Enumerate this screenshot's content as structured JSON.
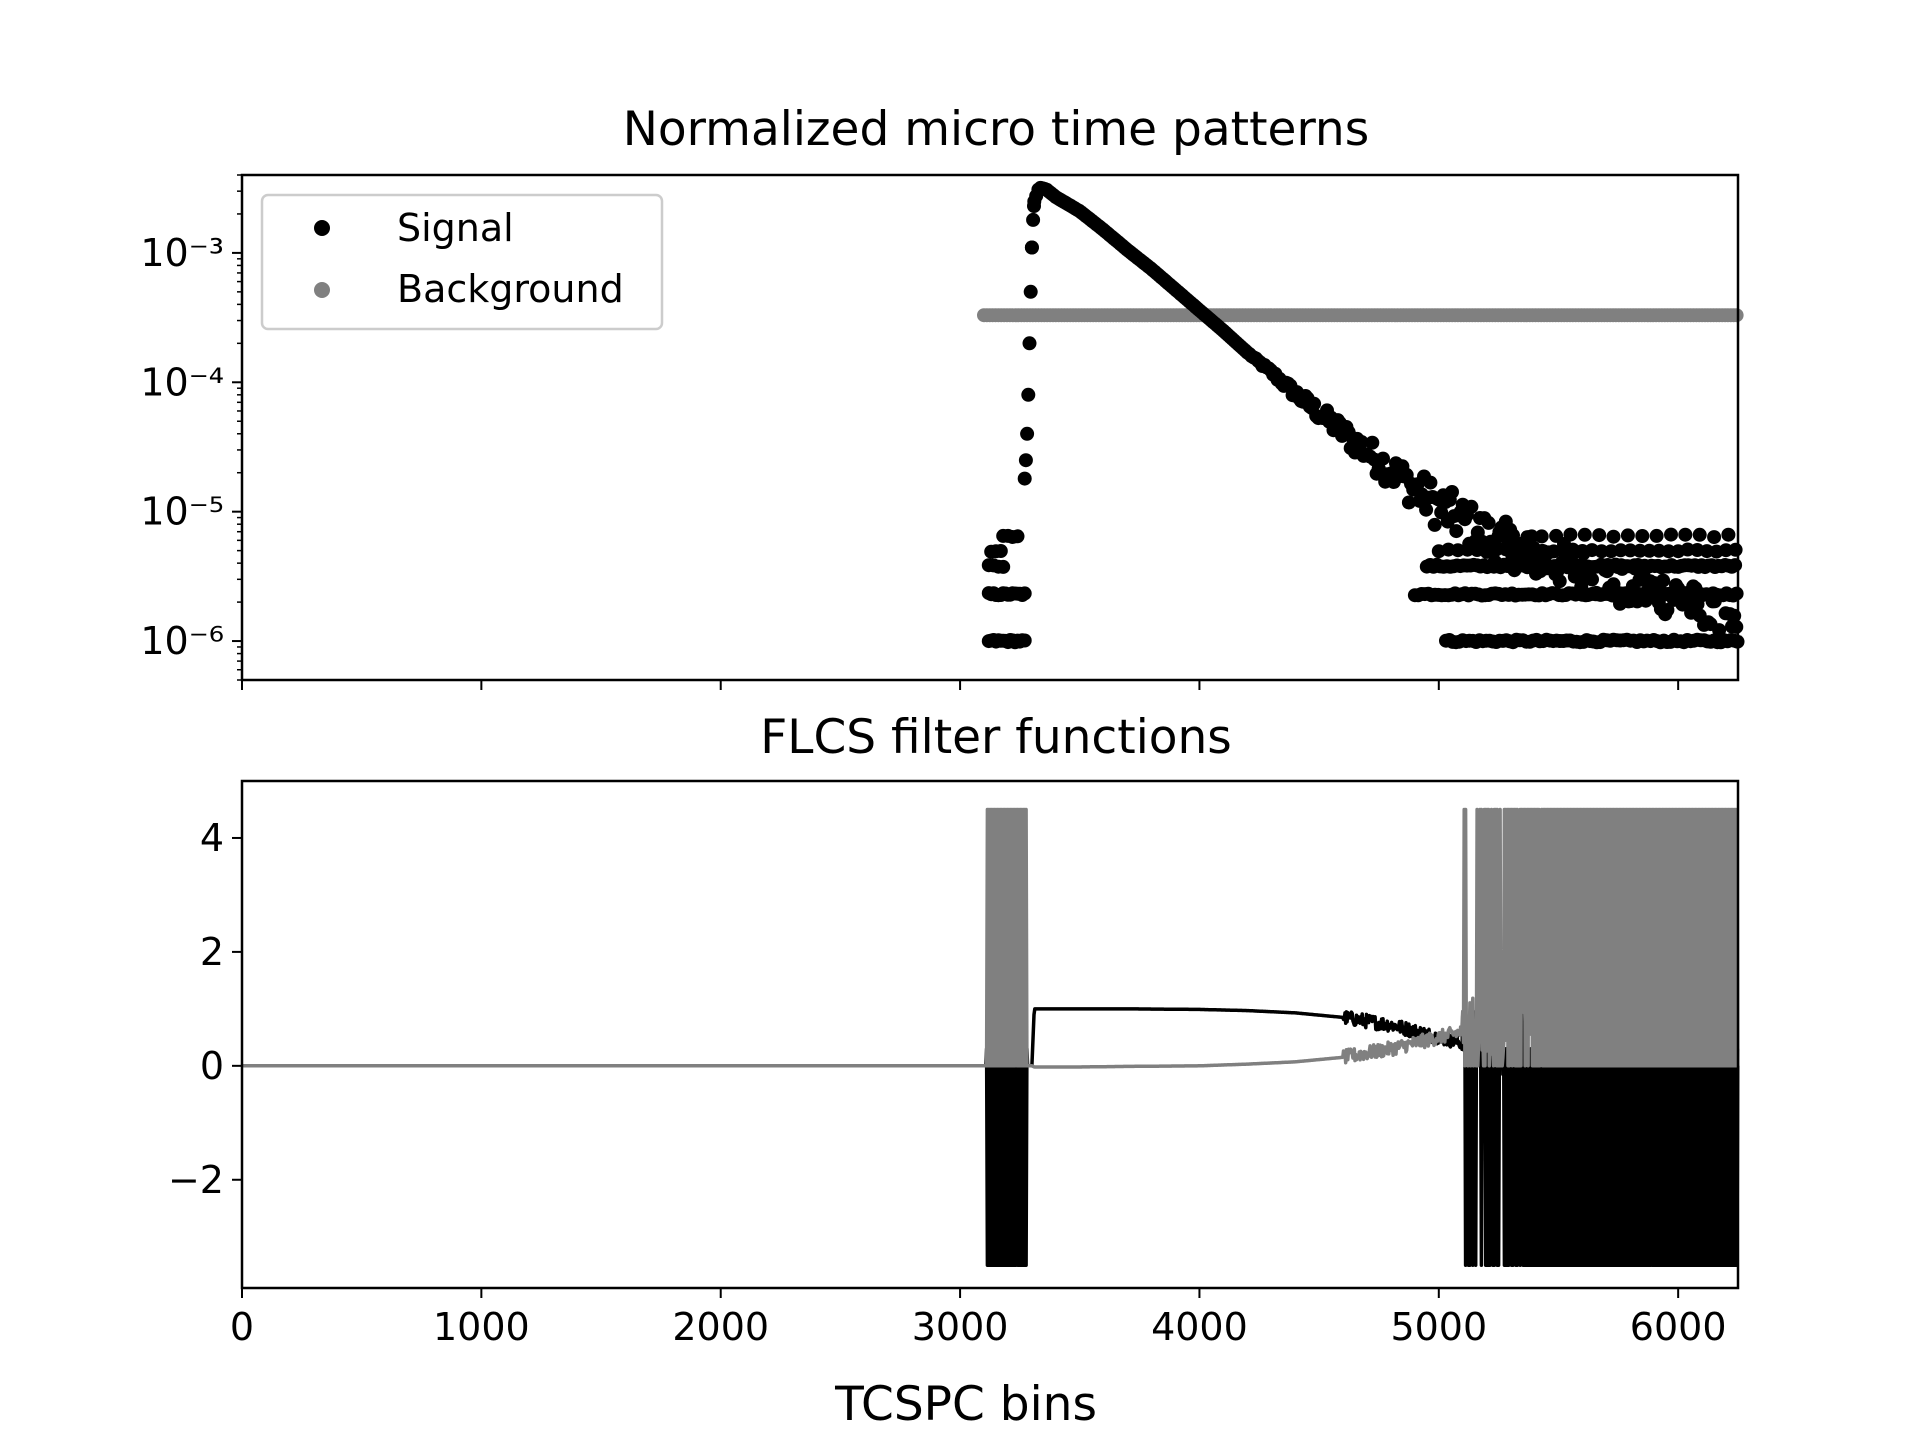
{
  "colors": {
    "signal": "#000000",
    "background": "#808080"
  },
  "chart_data": [
    {
      "type": "scatter",
      "title": "Normalized micro time patterns",
      "xlabel": "",
      "ylabel": "",
      "yscale": "log",
      "xlim": [
        0,
        6250
      ],
      "ylim": [
        5e-07,
        0.004
      ],
      "y_tick_labels": [
        "10⁻³",
        "10⁻⁴",
        "10⁻⁵",
        "10⁻⁶"
      ],
      "y_tick_values": [
        0.001,
        0.0001,
        1e-05,
        1e-06
      ],
      "legend": {
        "placement": "upper-left",
        "entries": [
          "Signal",
          "Background"
        ]
      },
      "series": [
        {
          "name": "Signal",
          "marker": "dot",
          "x": [
            3120,
            3160,
            3200,
            3240,
            3260,
            3280,
            3290,
            3300,
            3310,
            3330,
            3360,
            3400,
            3500,
            3600,
            3700,
            3800,
            3900,
            4000,
            4100,
            4200,
            4300,
            4400,
            4500,
            4600,
            4700,
            4800,
            4900,
            5000,
            5200,
            5400,
            5600,
            5800,
            6000,
            6250
          ],
          "y": [
            1e-06,
            2.3e-06,
            5e-06,
            6.5e-06,
            1.8e-05,
            4e-05,
            0.0002,
            0.0011,
            0.0025,
            0.0032,
            0.0031,
            0.0027,
            0.0021,
            0.0015,
            0.00105,
            0.00075,
            0.00052,
            0.00036,
            0.00025,
            0.00017,
            0.00012,
            8.2e-05,
            5.8e-05,
            4.1e-05,
            2.9e-05,
            2.1e-05,
            1.5e-05,
            1.1e-05,
            6.5e-06,
            4.5e-06,
            3.5e-06,
            2.5e-06,
            2.3e-06,
            1e-06
          ]
        },
        {
          "name": "Background",
          "marker": "dot",
          "x": [
            3100,
            6250
          ],
          "y": [
            0.00033,
            0.00033
          ]
        }
      ]
    },
    {
      "type": "line",
      "title": "FLCS filter functions",
      "xlabel": "TCSPC bins",
      "ylabel": "",
      "xlim": [
        0,
        6250
      ],
      "ylim": [
        -3.9,
        5.0
      ],
      "x_tick_labels": [
        "0",
        "1000",
        "2000",
        "3000",
        "4000",
        "5000",
        "6000"
      ],
      "x_tick_values": [
        0,
        1000,
        2000,
        3000,
        4000,
        5000,
        6000
      ],
      "y_tick_labels": [
        "4",
        "2",
        "0",
        "−2"
      ],
      "y_tick_values": [
        4,
        2,
        0,
        -2
      ],
      "series": [
        {
          "name": "Signal",
          "x": [
            0,
            3100,
            3300,
            3310,
            3500,
            3700,
            4000,
            4200,
            4400,
            4600,
            4800,
            5000,
            5100,
            6250
          ],
          "y": [
            0,
            0,
            0,
            1.0,
            1.0,
            1.0,
            0.99,
            0.97,
            0.93,
            0.85,
            0.72,
            0.5,
            0.4,
            0.3
          ],
          "noise_regions": [
            {
              "x_from": 3110,
              "x_to": 3280,
              "low": -3.5,
              "high": 0
            },
            {
              "x_from": 5100,
              "x_to": 6250,
              "low": -3.5,
              "high": 0
            }
          ]
        },
        {
          "name": "Background",
          "x": [
            0,
            3100,
            3300,
            3310,
            3500,
            3700,
            4000,
            4200,
            4400,
            4600,
            4800,
            5000,
            5100,
            6250
          ],
          "y": [
            0,
            0,
            0,
            -0.02,
            -0.02,
            -0.01,
            0.0,
            0.03,
            0.07,
            0.15,
            0.3,
            0.5,
            0.6,
            0.7
          ],
          "noise_regions": [
            {
              "x_from": 3110,
              "x_to": 3280,
              "low": 0,
              "high": 4.5
            },
            {
              "x_from": 5100,
              "x_to": 6250,
              "low": 0,
              "high": 4.5
            }
          ]
        }
      ]
    }
  ]
}
